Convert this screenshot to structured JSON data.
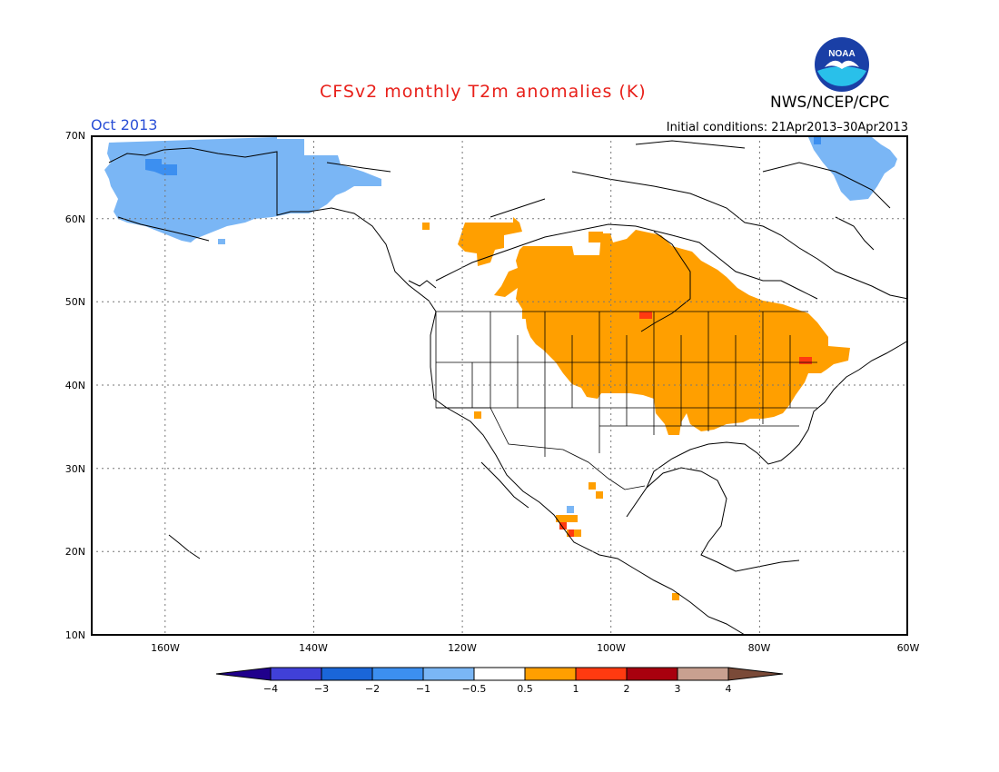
{
  "header": {
    "title": "CFSv2 monthly T2m anomalies (K)",
    "month": "Oct 2013",
    "agency": "NWS/NCEP/CPC",
    "initial_conditions": "Initial conditions: 21Apr2013–30Apr2013",
    "logo_text": "NOAA"
  },
  "axes": {
    "lat_labels": [
      "70N",
      "60N",
      "50N",
      "40N",
      "30N",
      "20N",
      "10N"
    ],
    "lon_labels": [
      "160W",
      "140W",
      "120W",
      "100W",
      "80W",
      "60W"
    ]
  },
  "legend": {
    "levels": [
      "−4",
      "−3",
      "−2",
      "−1",
      "−0.5",
      "0.5",
      "1",
      "2",
      "3",
      "4"
    ],
    "colors": [
      "#20008c",
      "#4040d8",
      "#1a66d9",
      "#3c8ff0",
      "#7ab6f5",
      "#ffffff",
      "#ff9f00",
      "#ff3a10",
      "#a8000e",
      "#c8a090",
      "#7a4a38"
    ]
  },
  "colors": {
    "cold": "#7ab6f5",
    "cold_strong": "#3c8ff0",
    "warm": "#ff9f00",
    "warm_strong": "#ff3a10"
  },
  "map_regions": [
    {
      "name": "Alaska",
      "anomaly_class": "-1 to -0.5"
    },
    {
      "name": "Greenland west coast",
      "anomaly_class": "-1 to -0.5"
    },
    {
      "name": "Central Canada and Upper Midwest",
      "anomaly_class": "0.5 to 1"
    },
    {
      "name": "Great Lakes and Northeast US",
      "anomaly_class": "0.5 to 1"
    },
    {
      "name": "Western Mexico",
      "anomaly_class": "0.5 to 2"
    }
  ]
}
